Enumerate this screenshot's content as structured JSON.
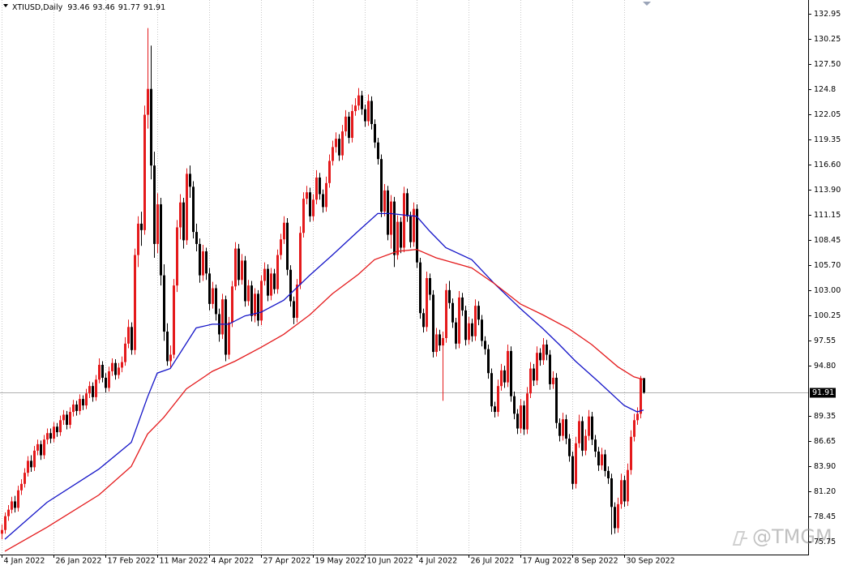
{
  "chart_data": {
    "type": "candlestick",
    "title": "XTIUSD,Daily",
    "watermark": "@TMGM",
    "up_color": "#e41a1c",
    "down_color": "#000000",
    "xlim": [
      -0.5,
      248.75
    ],
    "ylim": [
      74.34,
      134.44
    ],
    "xticks": [
      {
        "value": 0,
        "label": "4 Jan 2022"
      },
      {
        "value": 16,
        "label": "26 Jan 2022"
      },
      {
        "value": 32,
        "label": "17 Feb 2022"
      },
      {
        "value": 48,
        "label": "11 Mar 2022"
      },
      {
        "value": 64,
        "label": "4 Apr 2022"
      },
      {
        "value": 80,
        "label": "27 Apr 2022"
      },
      {
        "value": 96,
        "label": "19 May 2022"
      },
      {
        "value": 112,
        "label": "10 Jun 2022"
      },
      {
        "value": 128,
        "label": "4 Jul 2022"
      },
      {
        "value": 144,
        "label": "26 Jul 2022"
      },
      {
        "value": 160,
        "label": "17 Aug 2022"
      },
      {
        "value": 176,
        "label": "8 Sep 2022"
      },
      {
        "value": 192,
        "label": "30 Sep 2022"
      }
    ],
    "yticks": [
      132.95,
      130.25,
      {
        "value": 127.5,
        "label": "127.50"
      },
      124.8,
      122.05,
      119.35,
      {
        "value": 116.6,
        "label": "116.60"
      },
      {
        "value": 113.9,
        "label": "113.90"
      },
      111.15,
      108.45,
      {
        "value": 105.7,
        "label": "105.70"
      },
      {
        "value": 103,
        "label": "103.00"
      },
      100.25,
      97.55,
      {
        "value": 94.8,
        "label": "94.80"
      },
      89.35,
      86.65,
      {
        "value": 83.9,
        "label": "83.90"
      },
      {
        "value": 81.2,
        "label": "81.20"
      },
      78.45,
      75.75
    ],
    "candles": [
      [
        76.6,
        77.6,
        76.0,
        77.0
      ],
      [
        77.0,
        78.9,
        76.6,
        78.5
      ],
      [
        78.5,
        79.7,
        78.0,
        79.2
      ],
      [
        79.2,
        80.6,
        78.8,
        80.1
      ],
      [
        80.1,
        80.7,
        78.9,
        79.4
      ],
      [
        79.4,
        81.8,
        79.0,
        81.3
      ],
      [
        81.3,
        82.5,
        80.8,
        82.0
      ],
      [
        82.0,
        83.7,
        81.6,
        83.2
      ],
      [
        83.2,
        85.0,
        82.8,
        84.5
      ],
      [
        84.5,
        85.1,
        83.3,
        83.8
      ],
      [
        83.8,
        86.1,
        83.4,
        85.6
      ],
      [
        85.6,
        86.8,
        85.1,
        86.3
      ],
      [
        86.3,
        86.7,
        84.6,
        85.1
      ],
      [
        85.1,
        87.3,
        84.7,
        86.8
      ],
      [
        86.8,
        88.0,
        86.3,
        87.5
      ],
      [
        87.5,
        88.0,
        86.4,
        86.9
      ],
      [
        86.9,
        88.7,
        86.5,
        88.2
      ],
      [
        88.2,
        88.6,
        87.1,
        87.6
      ],
      [
        87.6,
        89.4,
        87.2,
        88.9
      ],
      [
        88.9,
        90.0,
        88.4,
        89.5
      ],
      [
        89.5,
        89.9,
        87.9,
        88.4
      ],
      [
        88.4,
        90.3,
        88.0,
        89.8
      ],
      [
        89.8,
        91.1,
        89.3,
        90.6
      ],
      [
        90.6,
        91.0,
        89.4,
        89.9
      ],
      [
        89.9,
        91.7,
        89.5,
        91.2
      ],
      [
        91.2,
        91.6,
        90.0,
        90.5
      ],
      [
        90.5,
        92.3,
        90.1,
        91.8
      ],
      [
        91.8,
        93.1,
        91.3,
        92.6
      ],
      [
        92.6,
        93.0,
        90.9,
        91.4
      ],
      [
        91.4,
        93.8,
        91.0,
        93.3
      ],
      [
        93.3,
        95.6,
        92.9,
        94.9
      ],
      [
        94.9,
        95.3,
        93.0,
        93.5
      ],
      [
        93.5,
        94.0,
        91.9,
        92.4
      ],
      [
        92.4,
        94.7,
        92.0,
        94.2
      ],
      [
        94.2,
        95.6,
        93.7,
        95.1
      ],
      [
        95.1,
        95.5,
        93.3,
        93.8
      ],
      [
        93.8,
        95.1,
        93.4,
        94.6
      ],
      [
        94.6,
        95.8,
        94.1,
        95.2
      ],
      [
        95.2,
        97.9,
        94.8,
        97.2
      ],
      [
        97.2,
        99.8,
        96.7,
        99.0
      ],
      [
        99.0,
        99.5,
        96.0,
        96.5
      ],
      [
        96.5,
        107.5,
        96.0,
        106.8
      ],
      [
        106.8,
        111.0,
        105.5,
        110.2
      ],
      [
        110.2,
        111.5,
        107.8,
        109.5
      ],
      [
        109.5,
        123.0,
        109.0,
        122.0
      ],
      [
        122.0,
        131.4,
        120.5,
        124.8
      ],
      [
        124.8,
        129.5,
        115.0,
        116.5
      ],
      [
        116.5,
        118.0,
        106.5,
        108.0
      ],
      [
        108.0,
        113.5,
        107.0,
        112.3
      ],
      [
        112.3,
        113.0,
        103.5,
        104.6
      ],
      [
        104.6,
        105.8,
        97.5,
        98.5
      ],
      [
        98.5,
        99.4,
        94.8,
        95.3
      ],
      [
        95.3,
        97.0,
        94.5,
        96.0
      ],
      [
        96.0,
        104.2,
        95.6,
        103.5
      ],
      [
        103.5,
        110.6,
        102.8,
        109.8
      ],
      [
        109.8,
        113.4,
        108.5,
        112.5
      ],
      [
        112.5,
        113.0,
        107.5,
        108.4
      ],
      [
        108.4,
        116.2,
        107.9,
        115.6
      ],
      [
        115.6,
        116.5,
        113.0,
        114.2
      ],
      [
        114.2,
        114.8,
        108.6,
        109.3
      ],
      [
        109.3,
        110.2,
        107.2,
        108.0
      ],
      [
        108.0,
        108.6,
        103.8,
        104.6
      ],
      [
        104.6,
        107.9,
        104.0,
        107.2
      ],
      [
        107.2,
        107.6,
        104.1,
        104.8
      ],
      [
        104.8,
        105.4,
        100.8,
        101.5
      ],
      [
        101.5,
        103.9,
        101.0,
        103.2
      ],
      [
        103.2,
        103.6,
        99.7,
        100.4
      ],
      [
        100.4,
        101.0,
        97.4,
        98.2
      ],
      [
        98.2,
        102.6,
        97.7,
        102.0
      ],
      [
        102.0,
        102.4,
        95.3,
        96.0
      ],
      [
        96.0,
        100.1,
        95.5,
        99.5
      ],
      [
        99.5,
        104.0,
        99.0,
        103.4
      ],
      [
        103.4,
        108.2,
        103.0,
        107.5
      ],
      [
        107.5,
        108.0,
        103.5,
        104.1
      ],
      [
        104.1,
        106.9,
        103.6,
        106.2
      ],
      [
        106.2,
        106.7,
        101.2,
        101.8
      ],
      [
        101.8,
        104.1,
        101.3,
        103.5
      ],
      [
        103.5,
        104.0,
        99.6,
        100.2
      ],
      [
        100.2,
        103.2,
        99.5,
        102.6
      ],
      [
        102.6,
        103.0,
        99.1,
        99.7
      ],
      [
        99.7,
        104.6,
        99.2,
        104.0
      ],
      [
        104.0,
        106.0,
        103.5,
        105.3
      ],
      [
        105.3,
        105.8,
        101.8,
        102.4
      ],
      [
        102.4,
        105.4,
        101.9,
        104.8
      ],
      [
        104.8,
        105.3,
        102.6,
        103.1
      ],
      [
        103.1,
        107.4,
        102.6,
        106.8
      ],
      [
        106.8,
        109.1,
        106.3,
        108.5
      ],
      [
        108.5,
        111.0,
        108.0,
        110.3
      ],
      [
        110.3,
        110.8,
        104.6,
        105.2
      ],
      [
        105.2,
        105.7,
        101.2,
        101.8
      ],
      [
        101.8,
        102.3,
        99.3,
        100.0
      ],
      [
        100.0,
        104.2,
        99.5,
        103.6
      ],
      [
        103.6,
        109.9,
        103.1,
        109.2
      ],
      [
        109.2,
        113.6,
        108.7,
        112.9
      ],
      [
        112.9,
        114.3,
        112.3,
        113.6
      ],
      [
        113.6,
        114.1,
        110.4,
        111.0
      ],
      [
        111.0,
        113.4,
        110.5,
        112.8
      ],
      [
        112.8,
        116.0,
        112.3,
        115.2
      ],
      [
        115.2,
        115.7,
        112.8,
        113.4
      ],
      [
        113.4,
        113.9,
        111.4,
        112.0
      ],
      [
        112.0,
        115.3,
        111.5,
        114.6
      ],
      [
        114.6,
        117.7,
        114.1,
        117.0
      ],
      [
        117.0,
        119.2,
        116.5,
        118.5
      ],
      [
        118.5,
        120.1,
        117.9,
        119.4
      ],
      [
        119.4,
        119.9,
        117.0,
        117.6
      ],
      [
        117.6,
        120.9,
        117.1,
        120.2
      ],
      [
        120.2,
        122.5,
        119.7,
        121.8
      ],
      [
        121.8,
        122.3,
        118.9,
        119.5
      ],
      [
        119.5,
        123.1,
        119.0,
        122.4
      ],
      [
        122.4,
        123.8,
        121.9,
        123.0
      ],
      [
        123.0,
        124.9,
        122.5,
        124.1
      ],
      [
        124.1,
        124.6,
        122.0,
        122.6
      ],
      [
        122.6,
        123.1,
        120.7,
        121.3
      ],
      [
        121.3,
        124.2,
        120.8,
        123.5
      ],
      [
        123.5,
        124.0,
        120.4,
        121.0
      ],
      [
        121.0,
        121.5,
        118.4,
        119.0
      ],
      [
        119.0,
        119.5,
        116.6,
        117.2
      ],
      [
        117.2,
        117.7,
        110.9,
        111.5
      ],
      [
        111.5,
        114.5,
        111.0,
        113.8
      ],
      [
        113.8,
        114.3,
        108.4,
        109.0
      ],
      [
        109.0,
        113.3,
        107.5,
        112.6
      ],
      [
        112.6,
        113.1,
        105.5,
        106.8
      ],
      [
        106.8,
        111.1,
        106.3,
        110.4
      ],
      [
        110.4,
        110.9,
        107.0,
        107.6
      ],
      [
        107.6,
        114.2,
        107.1,
        113.5
      ],
      [
        113.5,
        114.0,
        110.4,
        111.0
      ],
      [
        111.0,
        111.5,
        107.6,
        108.2
      ],
      [
        108.2,
        112.5,
        107.7,
        111.8
      ],
      [
        111.8,
        112.3,
        105.4,
        106.0
      ],
      [
        106.0,
        106.5,
        99.9,
        100.5
      ],
      [
        100.5,
        101.0,
        98.4,
        99.0
      ],
      [
        99.0,
        105.0,
        98.5,
        104.3
      ],
      [
        104.3,
        104.8,
        101.9,
        102.5
      ],
      [
        102.5,
        103.0,
        95.7,
        96.3
      ],
      [
        96.3,
        98.9,
        95.8,
        98.2
      ],
      [
        98.2,
        98.7,
        96.4,
        97.0
      ],
      [
        97.0,
        98.5,
        91.0,
        97.8
      ],
      [
        97.8,
        103.7,
        97.3,
        103.0
      ],
      [
        103.0,
        104.0,
        101.0,
        101.6
      ],
      [
        101.6,
        102.1,
        98.9,
        99.5
      ],
      [
        99.5,
        100.0,
        96.6,
        97.2
      ],
      [
        97.2,
        102.9,
        96.7,
        102.2
      ],
      [
        102.2,
        102.7,
        100.2,
        100.8
      ],
      [
        100.8,
        101.3,
        97.0,
        97.6
      ],
      [
        97.6,
        100.1,
        97.1,
        99.4
      ],
      [
        99.4,
        99.9,
        97.4,
        98.0
      ],
      [
        98.0,
        102.0,
        97.5,
        101.3
      ],
      [
        101.3,
        101.8,
        99.2,
        99.8
      ],
      [
        99.8,
        100.3,
        96.9,
        97.5
      ],
      [
        97.5,
        98.0,
        96.0,
        96.6
      ],
      [
        96.6,
        97.1,
        93.4,
        94.0
      ],
      [
        94.0,
        94.5,
        89.8,
        90.4
      ],
      [
        90.4,
        90.9,
        89.2,
        89.8
      ],
      [
        89.8,
        93.3,
        89.3,
        92.6
      ],
      [
        92.6,
        95.0,
        92.1,
        94.3
      ],
      [
        94.3,
        94.8,
        92.4,
        93.0
      ],
      [
        93.0,
        97.1,
        92.5,
        96.4
      ],
      [
        96.4,
        96.9,
        90.9,
        91.5
      ],
      [
        91.5,
        92.0,
        89.0,
        89.6
      ],
      [
        89.6,
        90.1,
        87.4,
        88.0
      ],
      [
        88.0,
        91.2,
        87.5,
        90.5
      ],
      [
        90.5,
        91.0,
        87.3,
        87.9
      ],
      [
        87.9,
        92.5,
        87.4,
        91.8
      ],
      [
        91.8,
        95.2,
        91.3,
        94.5
      ],
      [
        94.5,
        95.0,
        92.6,
        93.2
      ],
      [
        93.2,
        96.9,
        92.7,
        96.2
      ],
      [
        96.2,
        96.7,
        94.8,
        95.4
      ],
      [
        95.4,
        97.8,
        94.9,
        97.1
      ],
      [
        97.1,
        97.6,
        95.4,
        96.0
      ],
      [
        96.0,
        96.5,
        92.2,
        92.8
      ],
      [
        92.8,
        94.2,
        92.3,
        93.5
      ],
      [
        93.5,
        94.0,
        88.0,
        88.6
      ],
      [
        88.6,
        89.1,
        86.6,
        87.2
      ],
      [
        87.2,
        89.7,
        86.7,
        89.0
      ],
      [
        89.0,
        89.5,
        86.3,
        86.9
      ],
      [
        86.9,
        87.4,
        84.4,
        85.0
      ],
      [
        85.0,
        85.5,
        81.4,
        82.0
      ],
      [
        82.0,
        87.1,
        81.5,
        86.4
      ],
      [
        86.4,
        89.5,
        85.9,
        88.8
      ],
      [
        88.8,
        89.3,
        85.0,
        85.6
      ],
      [
        85.6,
        87.9,
        85.1,
        87.2
      ],
      [
        87.2,
        90.0,
        86.7,
        89.3
      ],
      [
        89.3,
        89.8,
        86.2,
        86.8
      ],
      [
        86.8,
        87.3,
        84.9,
        85.5
      ],
      [
        85.5,
        86.0,
        83.4,
        84.0
      ],
      [
        84.0,
        85.9,
        83.5,
        85.2
      ],
      [
        85.2,
        85.7,
        82.8,
        83.4
      ],
      [
        83.4,
        83.9,
        82.0,
        82.6
      ],
      [
        82.6,
        83.1,
        76.5,
        79.5
      ],
      [
        79.5,
        80.0,
        76.6,
        77.2
      ],
      [
        77.2,
        80.5,
        76.7,
        79.8
      ],
      [
        79.8,
        83.1,
        79.3,
        82.4
      ],
      [
        82.4,
        82.9,
        79.5,
        80.1
      ],
      [
        80.1,
        84.2,
        79.6,
        83.5
      ],
      [
        83.5,
        87.8,
        83.0,
        87.1
      ],
      [
        87.1,
        89.6,
        86.6,
        88.9
      ],
      [
        88.9,
        90.3,
        88.4,
        89.6
      ],
      [
        89.6,
        93.7,
        89.1,
        93.46
      ],
      [
        93.46,
        93.46,
        91.77,
        91.91
      ]
    ],
    "lines": [
      {
        "color": "#1515c8",
        "x": [
          1,
          14,
          30,
          40,
          45,
          48,
          52,
          60,
          65,
          70,
          75,
          80,
          87,
          95,
          102,
          110,
          116,
          120,
          125,
          128,
          132,
          137,
          145,
          152,
          160,
          167,
          172,
          177,
          184,
          192,
          196,
          198
        ],
        "values": [
          76,
          80,
          83.6,
          86.5,
          91.4,
          94,
          94.5,
          98.9,
          99.3,
          99.3,
          100.2,
          100.6,
          101.9,
          104.6,
          106.8,
          109.4,
          111.3,
          111.3,
          111.1,
          111.0,
          109.4,
          107.6,
          106.3,
          103.7,
          101.0,
          98.8,
          97.1,
          95.3,
          93.1,
          90.5,
          89.8,
          90.0
        ]
      },
      {
        "color": "#e41a1c",
        "x": [
          1,
          14,
          30,
          40,
          45,
          50,
          57,
          65,
          72,
          80,
          87,
          95,
          102,
          110,
          115,
          122,
          128,
          134,
          145,
          152,
          160,
          167,
          175,
          182,
          190,
          195,
          198
        ],
        "values": [
          74.7,
          77.3,
          80.8,
          83.9,
          87.4,
          89.2,
          92.3,
          94.2,
          95.3,
          96.8,
          98.2,
          100.3,
          102.6,
          104.7,
          106.3,
          107.2,
          107.4,
          106.5,
          105.4,
          103.7,
          101.5,
          100.3,
          98.8,
          97.1,
          94.7,
          93.6,
          93.3
        ]
      }
    ]
  }
}
